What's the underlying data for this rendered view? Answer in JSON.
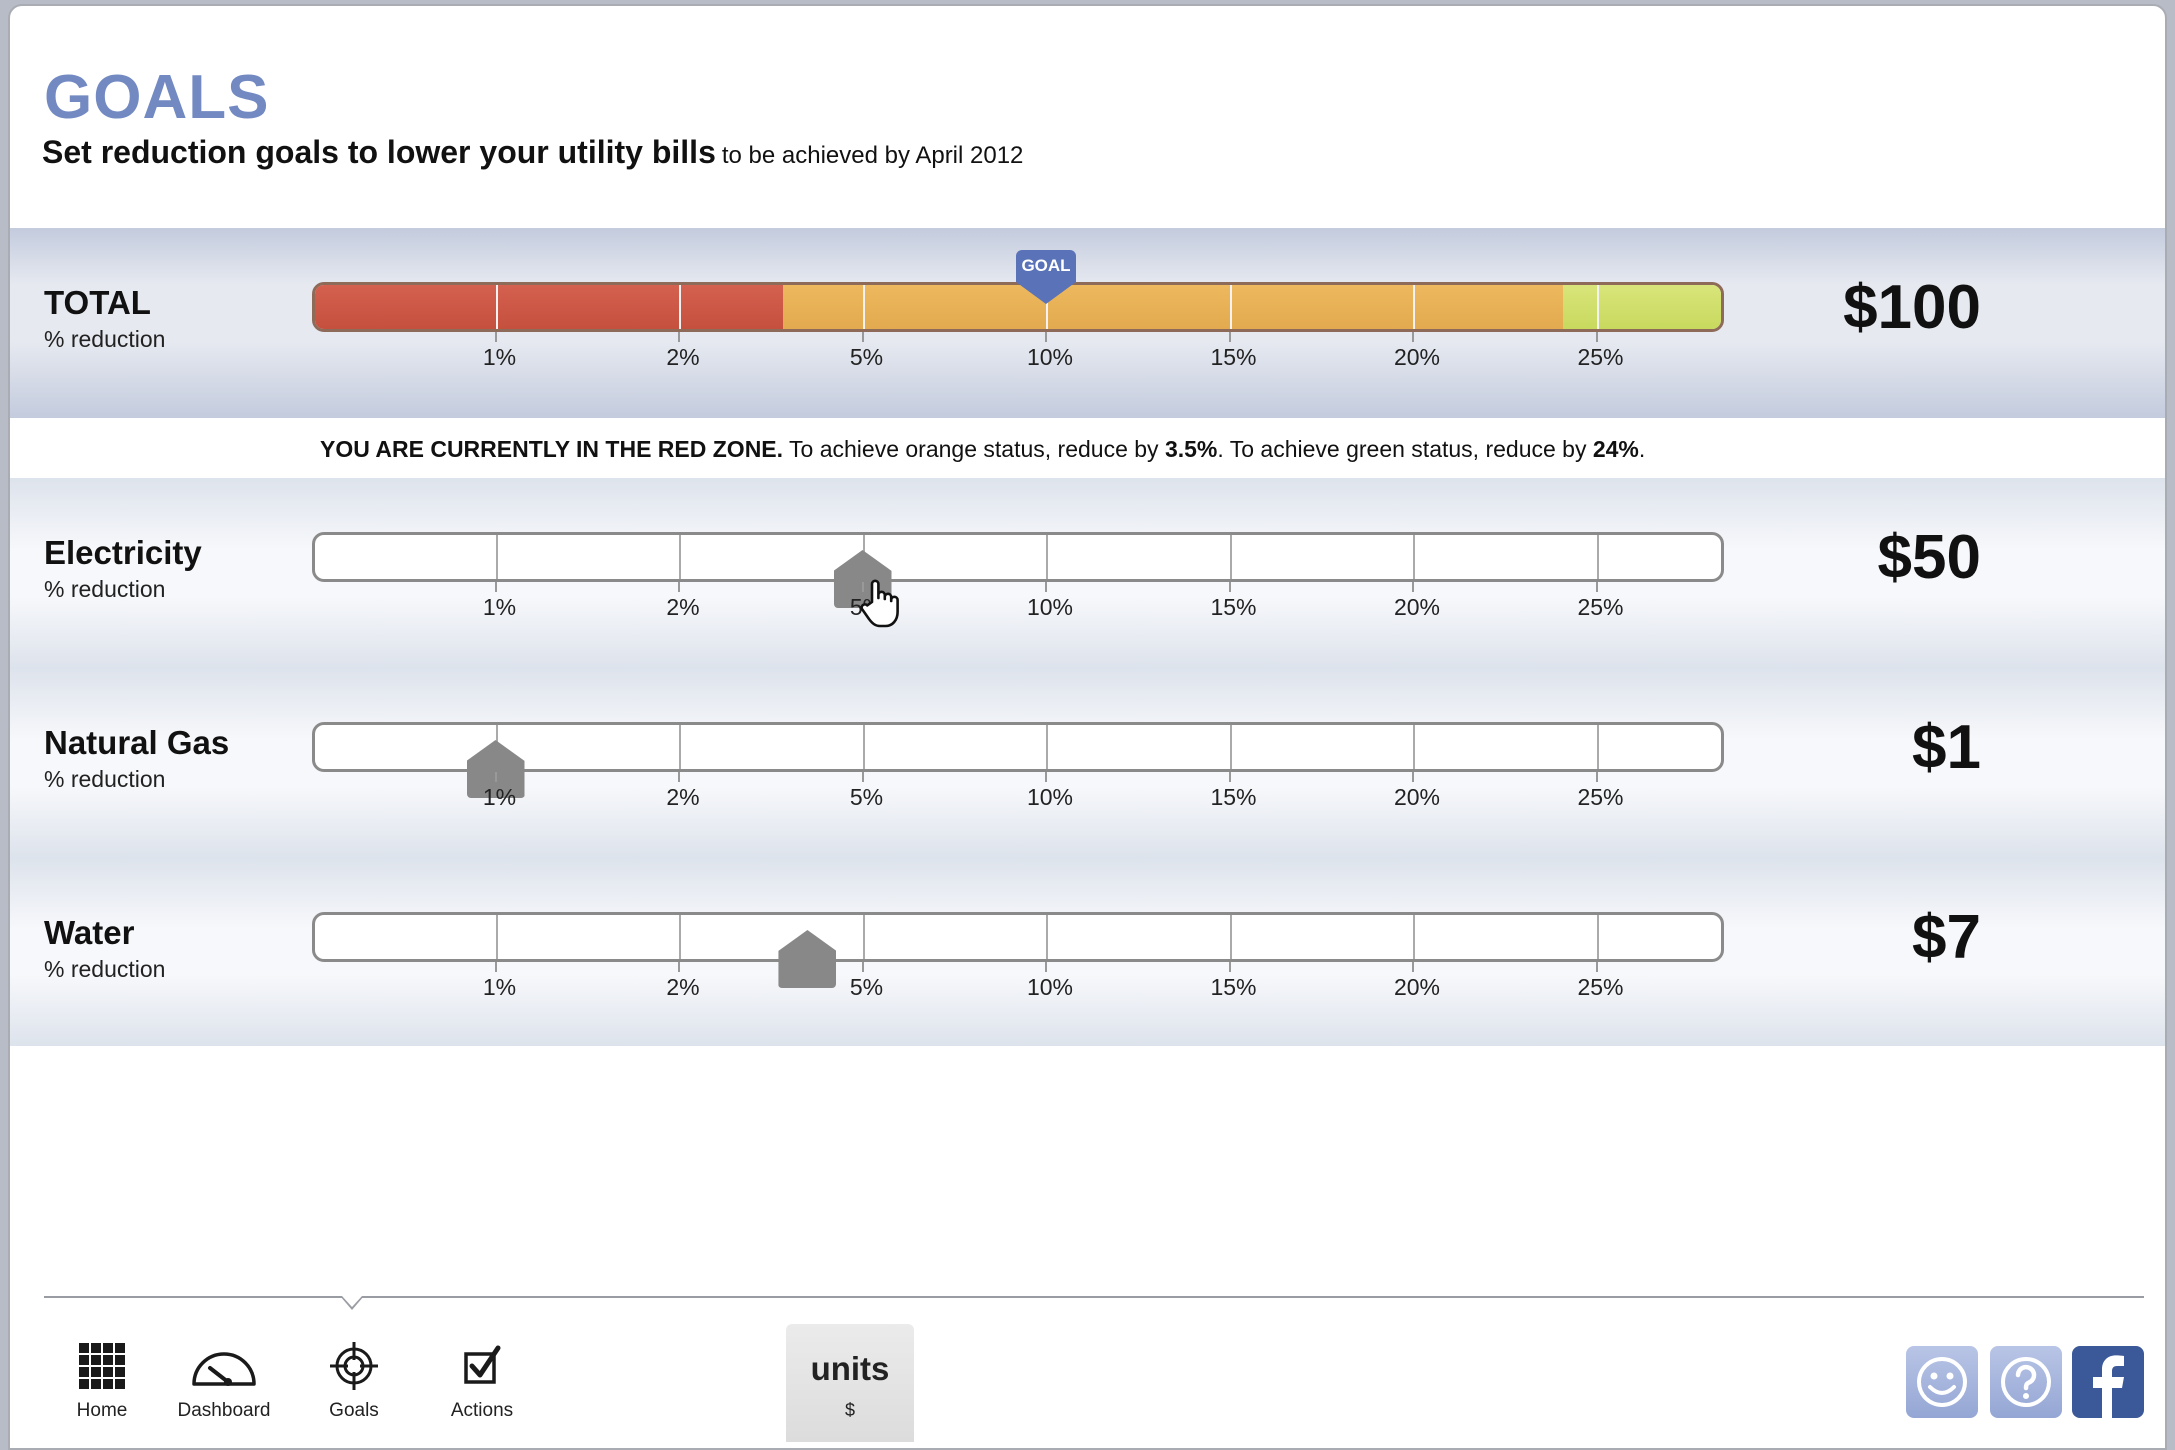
{
  "header": {
    "title": "GOALS",
    "subtitle": "Set reduction goals to lower your utility bills",
    "subtitle_note": "to be achieved by April 2012"
  },
  "scale_labels": [
    "1%",
    "2%",
    "5%",
    "10%",
    "15%",
    "20%",
    "25%"
  ],
  "total": {
    "label": "TOTAL",
    "sublabel": "% reduction",
    "amount": "$100",
    "goal_label": "GOAL",
    "goal_position": "10%",
    "zones": [
      {
        "name": "red",
        "color": "#c95442",
        "end_position": 2.55
      },
      {
        "name": "orange",
        "color": "#e8b057",
        "end_position": 6.8
      },
      {
        "name": "green",
        "color": "#cfdf69",
        "end_position": 7.7
      }
    ]
  },
  "status": {
    "zone_text": "YOU ARE CURRENTLY IN THE RED ZONE.",
    "orange_text": "To achieve orange status, reduce by",
    "orange_value": "3.5%",
    "green_text": ". To achieve green status, reduce by",
    "green_value": "24%",
    "end": "."
  },
  "rows": [
    {
      "id": "electricity",
      "label": "Electricity",
      "sublabel": "% reduction",
      "amount": "$50",
      "handle_position": 3.0
    },
    {
      "id": "gas",
      "label": "Natural Gas",
      "sublabel": "% reduction",
      "amount": "$1",
      "handle_position": 1.0
    },
    {
      "id": "water",
      "label": "Water",
      "sublabel": "% reduction",
      "amount": "$7",
      "handle_position": 2.7
    }
  ],
  "nav": {
    "home": "Home",
    "dashboard": "Dashboard",
    "goals": "Goals",
    "actions": "Actions",
    "units_label": "units",
    "units_value": "$"
  },
  "icons": {
    "home": "grid-icon",
    "dashboard": "gauge-icon",
    "goals": "target-icon",
    "actions": "checkbox-icon",
    "smiley": "smiley-icon",
    "help": "question-icon",
    "facebook": "facebook-icon"
  }
}
